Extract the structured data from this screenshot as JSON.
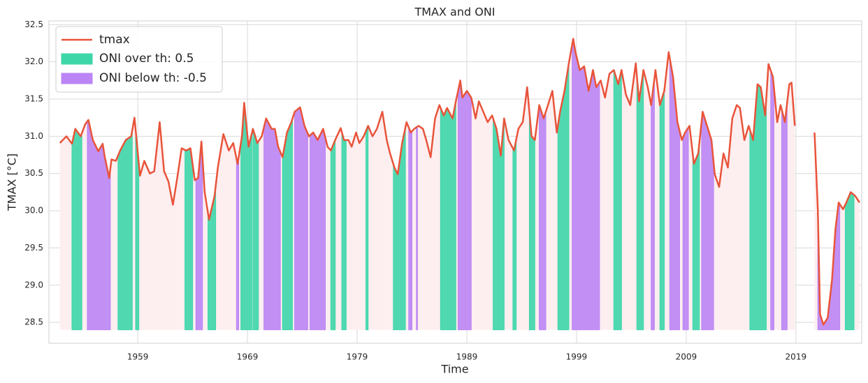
{
  "chart_data": {
    "type": "line",
    "title": "TMAX and ONI",
    "xlabel": "Time",
    "ylabel": "TMAX [°C]",
    "x": [
      1951.9,
      1952.5,
      1953.0,
      1953.3,
      1953.8,
      1954.2,
      1954.5,
      1954.9,
      1955.4,
      1955.8,
      1956.0,
      1956.4,
      1956.6,
      1957.0,
      1957.4,
      1957.9,
      1958.4,
      1958.7,
      1959.2,
      1959.6,
      1960.1,
      1960.5,
      1961.0,
      1961.4,
      1961.8,
      1962.2,
      1962.6,
      1963.0,
      1963.4,
      1963.8,
      1964.2,
      1964.5,
      1964.8,
      1965.1,
      1965.5,
      1966.0,
      1966.3,
      1966.8,
      1967.3,
      1967.7,
      1968.1,
      1968.5,
      1968.7,
      1969.1,
      1969.5,
      1969.9,
      1970.3,
      1970.7,
      1971.2,
      1971.5,
      1971.8,
      1972.2,
      1972.6,
      1973.0,
      1973.3,
      1973.8,
      1974.2,
      1974.6,
      1975.0,
      1975.4,
      1975.9,
      1976.3,
      1976.6,
      1977.0,
      1977.5,
      1977.8,
      1978.2,
      1978.5,
      1978.9,
      1979.2,
      1979.6,
      1980.0,
      1980.4,
      1980.8,
      1981.3,
      1981.7,
      1982.0,
      1982.4,
      1982.7,
      1983.1,
      1983.5,
      1983.9,
      1984.2,
      1984.6,
      1985.0,
      1985.3,
      1985.7,
      1986.1,
      1986.5,
      1986.9,
      1987.2,
      1987.7,
      1988.0,
      1988.4,
      1988.6,
      1989.0,
      1989.4,
      1989.8,
      1990.1,
      1990.5,
      1990.9,
      1991.3,
      1991.7,
      1992.1,
      1992.4,
      1992.8,
      1993.3,
      1993.7,
      1994.1,
      1994.5,
      1994.9,
      1995.2,
      1995.6,
      1996.0,
      1996.4,
      1996.8,
      1997.2,
      1997.5,
      1997.9,
      1998.3,
      1998.7,
      1998.9,
      1999.3,
      1999.7,
      2000.1,
      2000.5,
      2000.8,
      2001.2,
      2001.6,
      2002.0,
      2002.4,
      2002.8,
      2003.1,
      2003.5,
      2003.9,
      2004.4,
      2004.7,
      2005.1,
      2005.5,
      2005.8,
      2006.2,
      2006.6,
      2007.0,
      2007.4,
      2007.8,
      2008.2,
      2008.6,
      2008.9,
      2009.3,
      2009.7,
      2010.1,
      2010.5,
      2010.9,
      2011.3,
      2011.6,
      2012.0,
      2012.4,
      2012.8,
      2013.2,
      2013.6,
      2013.9,
      2014.3,
      2014.7,
      2015.1,
      2015.5,
      2015.8,
      2016.2,
      2016.5,
      2016.9,
      2017.3,
      2017.6,
      2018.0,
      2018.4,
      2018.6,
      2018.9,
      2019.5,
      2020.7,
      2021.0,
      2021.2,
      2021.5,
      2021.9,
      2022.3,
      2022.6,
      2022.9,
      2023.3,
      2023.6,
      2024.0,
      2024.4,
      2024.8
    ],
    "series": [
      {
        "name": "tmax",
        "color": "#e8543a",
        "values": [
          30.91,
          31.0,
          30.9,
          31.1,
          31.0,
          31.16,
          31.22,
          30.95,
          30.8,
          30.9,
          30.72,
          30.44,
          30.69,
          30.67,
          30.81,
          30.95,
          31.0,
          31.25,
          30.47,
          30.67,
          30.5,
          30.53,
          31.19,
          30.53,
          30.39,
          30.08,
          30.44,
          30.84,
          30.81,
          30.84,
          30.41,
          30.44,
          30.93,
          30.25,
          29.88,
          30.2,
          30.58,
          31.03,
          30.81,
          30.91,
          30.63,
          31.0,
          31.45,
          30.86,
          31.1,
          30.91,
          31.0,
          31.24,
          31.1,
          31.1,
          30.86,
          30.72,
          31.05,
          31.19,
          31.33,
          31.39,
          31.14,
          31.0,
          31.05,
          30.95,
          31.1,
          30.86,
          30.81,
          30.95,
          31.11,
          30.95,
          30.95,
          30.86,
          31.05,
          30.91,
          31.0,
          31.14,
          31.0,
          31.1,
          31.33,
          30.95,
          30.77,
          30.58,
          30.49,
          30.91,
          31.19,
          31.05,
          31.1,
          31.14,
          31.1,
          30.95,
          30.72,
          31.24,
          31.42,
          31.28,
          31.38,
          31.24,
          31.47,
          31.75,
          31.52,
          31.61,
          31.52,
          31.24,
          31.47,
          31.33,
          31.19,
          31.28,
          31.1,
          30.74,
          31.24,
          30.95,
          30.81,
          31.1,
          31.19,
          31.66,
          31.0,
          30.95,
          31.42,
          31.24,
          31.42,
          31.61,
          31.05,
          31.33,
          31.61,
          31.98,
          32.31,
          32.13,
          31.89,
          31.94,
          31.61,
          31.89,
          31.66,
          31.75,
          31.52,
          31.84,
          31.89,
          31.7,
          31.89,
          31.56,
          31.42,
          31.98,
          31.47,
          31.89,
          31.66,
          31.42,
          31.89,
          31.42,
          31.61,
          32.13,
          31.8,
          31.19,
          30.95,
          31.05,
          31.14,
          30.63,
          30.77,
          31.33,
          31.14,
          30.95,
          30.49,
          30.32,
          30.77,
          30.58,
          31.24,
          31.42,
          31.38,
          30.95,
          31.14,
          30.95,
          31.7,
          31.66,
          31.28,
          31.97,
          31.8,
          31.19,
          31.42,
          31.19,
          31.7,
          31.72,
          31.14,
          null,
          31.05,
          30.02,
          28.61,
          28.47,
          28.56,
          29.08,
          29.74,
          30.11,
          30.02,
          30.11,
          30.25,
          30.2,
          30.11
        ]
      }
    ],
    "bands": [
      {
        "name": "ONI over th: 0.5",
        "color": "#3dd6a9",
        "intervals": [
          [
            1953.0,
            1953.9
          ],
          [
            1957.2,
            1958.5
          ],
          [
            1958.8,
            1959.1
          ],
          [
            1963.3,
            1964.0
          ],
          [
            1965.4,
            1966.1
          ],
          [
            1968.4,
            1969.4
          ],
          [
            1969.5,
            1970.0
          ],
          [
            1972.2,
            1973.1
          ],
          [
            1976.6,
            1977.0
          ],
          [
            1977.6,
            1978.0
          ],
          [
            1979.8,
            1980.0
          ],
          [
            1982.3,
            1983.4
          ],
          [
            1986.6,
            1988.0
          ],
          [
            1991.4,
            1992.4
          ],
          [
            1993.2,
            1993.5
          ],
          [
            1994.7,
            1995.2
          ],
          [
            1997.3,
            1998.3
          ],
          [
            2002.4,
            2003.1
          ],
          [
            2004.5,
            2005.1
          ],
          [
            2006.6,
            2007.0
          ],
          [
            2009.6,
            2010.2
          ],
          [
            2014.8,
            2016.3
          ],
          [
            2023.5,
            2024.3
          ]
        ]
      },
      {
        "name": "ONI below th: -0.5",
        "color": "#bb85f5",
        "intervals": [
          [
            1954.4,
            1956.5
          ],
          [
            1964.3,
            1964.9
          ],
          [
            1968.0,
            1968.2
          ],
          [
            1970.5,
            1972.0
          ],
          [
            1973.3,
            1974.5
          ],
          [
            1974.7,
            1976.1
          ],
          [
            1983.7,
            1984.0
          ],
          [
            1984.4,
            1984.5
          ],
          [
            1988.2,
            1989.4
          ],
          [
            1995.6,
            1996.2
          ],
          [
            1998.6,
            2001.1
          ],
          [
            2005.8,
            2006.1
          ],
          [
            2007.5,
            2008.4
          ],
          [
            2008.7,
            2009.2
          ],
          [
            2010.4,
            2011.5
          ],
          [
            2016.7,
            2017.0
          ],
          [
            2017.7,
            2018.2
          ],
          [
            2020.6,
            2023.0
          ]
        ]
      }
    ],
    "fill_color": "#fdeef0",
    "fill_baseline": 28.4,
    "xlim": [
      1950.9,
      2025.0
    ],
    "xticks": [
      1959,
      1969,
      1979,
      1989,
      1999,
      2009,
      2019
    ],
    "ylim": [
      28.22,
      32.55
    ],
    "yticks": [
      28.5,
      {
        "value": 29,
        "label": "29.0"
      },
      29.5,
      {
        "value": 30,
        "label": "30.0"
      },
      30.5,
      {
        "value": 31,
        "label": "31.0"
      },
      31.5,
      {
        "value": 32,
        "label": "32.0"
      },
      32.5
    ],
    "grid": true,
    "legend": "upper left"
  }
}
